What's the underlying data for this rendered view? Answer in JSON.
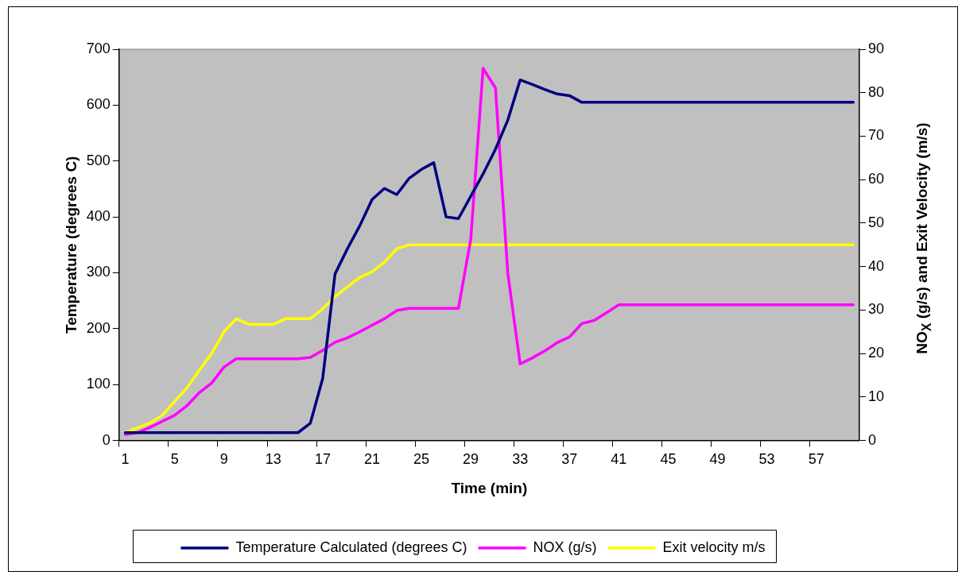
{
  "chart_data": {
    "type": "line",
    "xlabel": "Time (min)",
    "ylabel": "Temperature (degrees C)",
    "y2label": "NO$_{X}$ (g/s) and Exit Velocity (m/s)",
    "categories": [
      "1",
      null,
      null,
      null,
      "5",
      null,
      null,
      null,
      "9",
      null,
      null,
      null,
      "13",
      null,
      null,
      null,
      "17",
      null,
      null,
      null,
      "21",
      null,
      null,
      null,
      "25",
      null,
      null,
      null,
      "29",
      null,
      null,
      null,
      "33",
      null,
      null,
      null,
      "37",
      null,
      null,
      null,
      "41",
      null,
      null,
      null,
      "45",
      null,
      null,
      null,
      "49",
      null,
      null,
      null,
      "53",
      null,
      null,
      null,
      "57",
      null,
      null,
      null
    ],
    "series": [
      {
        "name": "Temperature Calculated (degrees C)",
        "color": "#000080",
        "values": [
          14,
          14,
          14,
          14,
          14,
          14,
          14,
          14,
          14,
          14,
          14,
          14,
          14,
          14,
          14,
          31,
          111,
          298,
          343,
          384,
          431,
          451,
          440,
          469,
          485,
          497,
          400,
          397,
          437,
          477,
          521,
          573,
          645,
          637,
          628,
          620,
          617,
          605,
          605,
          605,
          605,
          605,
          605,
          605,
          605,
          605,
          605,
          605,
          605,
          605,
          605,
          605,
          605,
          605,
          605,
          605,
          605,
          605,
          605,
          605
        ]
      },
      {
        "name": "NOX (g/s)",
        "color": "#ff00ff",
        "axis": "y2",
        "values": [
          1.4,
          1.8,
          3.0,
          4.4,
          5.8,
          8.0,
          11.0,
          13.2,
          16.9,
          18.8,
          18.8,
          18.8,
          18.8,
          18.8,
          18.8,
          19.1,
          20.7,
          22.6,
          23.6,
          25.0,
          26.5,
          28.0,
          29.9,
          30.4,
          30.4,
          30.4,
          30.4,
          30.4,
          46.3,
          85.6,
          81.1,
          38.5,
          17.6,
          19.0,
          20.6,
          22.5,
          23.8,
          26.9,
          27.6,
          29.4,
          31.2,
          31.2,
          31.2,
          31.2,
          31.2,
          31.2,
          31.2,
          31.2,
          31.2,
          31.2,
          31.2,
          31.2,
          31.2,
          31.2,
          31.2,
          31.2,
          31.2,
          31.2,
          31.2,
          31.2
        ]
      },
      {
        "name": "Exit velocity m/s",
        "color": "#ffff00",
        "axis": "y2",
        "values": [
          1.8,
          2.9,
          4.0,
          5.8,
          9.0,
          12.1,
          16.2,
          20.0,
          25.0,
          28.0,
          26.7,
          26.7,
          26.7,
          28.0,
          28.0,
          28.0,
          30.3,
          33.1,
          35.3,
          37.5,
          38.8,
          41.0,
          44.1,
          45,
          45,
          45,
          45,
          45,
          45,
          45,
          45,
          45,
          45,
          45,
          45,
          45,
          45,
          45,
          45,
          45,
          45,
          45,
          45,
          45,
          45,
          45,
          45,
          45,
          45,
          45,
          45,
          45,
          45,
          45,
          45,
          45,
          45,
          45,
          45,
          45
        ]
      }
    ],
    "ylim": [
      0,
      700
    ],
    "yticks": [
      0,
      100,
      200,
      300,
      400,
      500,
      600,
      700
    ],
    "y2lim": [
      0,
      90
    ],
    "y2ticks": [
      0,
      10,
      20,
      30,
      40,
      50,
      60,
      70,
      80,
      90
    ],
    "grid": false,
    "legend": "bottom",
    "marker": "none",
    "line_style": "solid"
  }
}
